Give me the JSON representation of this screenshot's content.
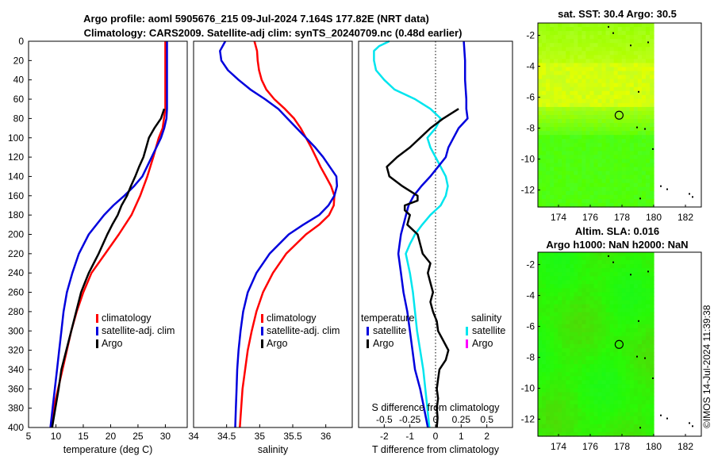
{
  "figure": {
    "title_line1": "Argo profile: aoml 5905676_215 09-Jul-2024 7.164S 177.82E (NRT data)",
    "title_line2": "Climatology: CARS2009. Satellite-adj clim: synTS_20240709.nc (0.48d earlier)",
    "stamp": "©IMOS 14-Jul-2024 11:39:38"
  },
  "colors": {
    "climatology": "#ff0000",
    "satellite": "#0000dd",
    "argo": "#000000",
    "salinity_satellite": "#00e5ee",
    "salinity_argo": "#ff00ff"
  },
  "chart_data": [
    {
      "id": "temperature",
      "type": "line",
      "xlabel": "temperature (deg C)",
      "xlim": [
        5,
        34
      ],
      "ylim": [
        400,
        0
      ],
      "xticks": [
        "5",
        "10",
        "15",
        "20",
        "25",
        "30"
      ],
      "yticks": [
        "0",
        "20",
        "40",
        "60",
        "80",
        "100",
        "120",
        "140",
        "160",
        "180",
        "200",
        "220",
        "240",
        "260",
        "280",
        "300",
        "320",
        "340",
        "360",
        "380",
        "400"
      ],
      "legend": [
        "climatology",
        "satellite-adj. clim",
        "Argo"
      ],
      "series": [
        {
          "name": "climatology",
          "depth": [
            0,
            60,
            70,
            90,
            100,
            120,
            140,
            160,
            180,
            200,
            220,
            240,
            260,
            280,
            300,
            320,
            340,
            360,
            380,
            400
          ],
          "values": [
            30.0,
            30.0,
            30.0,
            29.5,
            28.8,
            27.8,
            26.7,
            25.4,
            23.8,
            21.5,
            19.0,
            16.5,
            15.0,
            13.8,
            12.8,
            12.0,
            11.2,
            10.4,
            9.6,
            9.0
          ]
        },
        {
          "name": "satellite-adj. clim",
          "depth": [
            0,
            70,
            80,
            90,
            100,
            120,
            140,
            150,
            160,
            170,
            180,
            200,
            220,
            240,
            260,
            280,
            300,
            320,
            340,
            360,
            380,
            400
          ],
          "values": [
            30.3,
            30.3,
            30.2,
            29.8,
            29.2,
            27.5,
            25.8,
            24.3,
            22.5,
            20.5,
            18.8,
            16.0,
            14.2,
            13.0,
            12.0,
            11.4,
            11.0,
            10.6,
            10.2,
            9.8,
            9.4,
            9.0
          ]
        },
        {
          "name": "Argo",
          "depth": [
            70,
            80,
            90,
            100,
            110,
            120,
            130,
            140,
            150,
            160,
            170,
            180,
            190,
            200,
            210,
            220,
            230,
            240,
            250,
            260,
            280,
            300,
            320,
            340,
            360,
            380,
            400
          ],
          "values": [
            29.8,
            29.2,
            28.0,
            27.0,
            26.5,
            26.0,
            25.2,
            24.5,
            23.7,
            23.0,
            22.0,
            21.3,
            20.3,
            19.4,
            18.6,
            17.8,
            16.9,
            16.0,
            15.3,
            14.6,
            13.7,
            12.8,
            11.9,
            11.0,
            10.5,
            9.9,
            9.3
          ]
        }
      ]
    },
    {
      "id": "salinity",
      "type": "line",
      "xlabel": "salinity",
      "xlim": [
        34,
        36.4
      ],
      "ylim": [
        400,
        0
      ],
      "xticks": [
        "34",
        "34.5",
        "35",
        "35.5",
        "36"
      ],
      "legend": [
        "climatology",
        "satellite-adj. clim",
        "Argo"
      ],
      "series": [
        {
          "name": "climatology",
          "depth": [
            0,
            10,
            20,
            30,
            40,
            50,
            60,
            70,
            80,
            90,
            100,
            110,
            120,
            130,
            140,
            150,
            160,
            170,
            180,
            190,
            200,
            220,
            240,
            260,
            280,
            300,
            320,
            340,
            360,
            380,
            400
          ],
          "values": [
            34.92,
            34.96,
            34.97,
            34.99,
            35.03,
            35.1,
            35.22,
            35.38,
            35.52,
            35.62,
            35.7,
            35.78,
            35.85,
            35.92,
            36.0,
            36.08,
            36.13,
            36.12,
            36.05,
            35.9,
            35.7,
            35.4,
            35.2,
            35.05,
            34.95,
            34.88,
            34.82,
            34.78,
            34.74,
            34.72,
            34.7
          ]
        },
        {
          "name": "satellite-adj. clim",
          "depth": [
            0,
            10,
            20,
            30,
            40,
            50,
            60,
            70,
            80,
            90,
            100,
            110,
            120,
            130,
            140,
            150,
            160,
            170,
            180,
            190,
            200,
            220,
            240,
            260,
            280,
            300,
            320,
            340,
            360,
            380,
            400
          ],
          "values": [
            34.48,
            34.4,
            34.42,
            34.52,
            34.68,
            34.86,
            35.08,
            35.28,
            35.42,
            35.56,
            35.7,
            35.84,
            35.96,
            36.06,
            36.16,
            36.17,
            36.13,
            36.04,
            35.9,
            35.66,
            35.44,
            35.15,
            34.95,
            34.82,
            34.75,
            34.71,
            34.68,
            34.66,
            34.65,
            34.64,
            34.63
          ]
        }
      ]
    },
    {
      "id": "difference",
      "type": "line",
      "xlabel": "T difference from climatology",
      "top_label": "S difference from climatology",
      "xlim": [
        -3,
        3
      ],
      "ylim": [
        400,
        0
      ],
      "xticks": [
        "-2",
        "-1",
        "0",
        "1",
        "2"
      ],
      "top_ticks": [
        "-0.5",
        "-0.25",
        "0",
        "0.25",
        "0.5"
      ],
      "legend_temperature": {
        "title": "temperature",
        "items": [
          "satellite",
          "Argo"
        ]
      },
      "legend_salinity": {
        "title": "salinity",
        "items": [
          "satellite",
          "Argo"
        ]
      },
      "series": [
        {
          "name": "T satellite",
          "depth": [
            0,
            20,
            40,
            60,
            70,
            80,
            90,
            100,
            110,
            120,
            130,
            140,
            150,
            160,
            170,
            180,
            190,
            200,
            210,
            220,
            240,
            260,
            280,
            300,
            320,
            340,
            360,
            380,
            400
          ],
          "values": [
            1.1,
            1.15,
            1.15,
            1.2,
            1.2,
            1.25,
            0.9,
            0.7,
            0.5,
            0.4,
            0.1,
            -0.2,
            -0.55,
            -0.85,
            -1.05,
            -1.15,
            -1.25,
            -1.35,
            -1.4,
            -1.45,
            -1.35,
            -1.25,
            -1.1,
            -1.0,
            -0.9,
            -0.8,
            -0.6,
            -0.45,
            -0.3
          ]
        },
        {
          "name": "T Argo",
          "depth": [
            70,
            80,
            90,
            100,
            110,
            120,
            130,
            140,
            150,
            160,
            165,
            170,
            175,
            180,
            190,
            200,
            210,
            220,
            230,
            240,
            250,
            260,
            270,
            280,
            290,
            300,
            310,
            320,
            330,
            340,
            350,
            360,
            370,
            380,
            390,
            400
          ],
          "values": [
            0.9,
            0.3,
            -0.2,
            -0.6,
            -1.0,
            -1.5,
            -1.9,
            -1.8,
            -1.3,
            -0.7,
            -0.7,
            -1.2,
            -1.2,
            -1.0,
            -1.1,
            -0.7,
            -0.6,
            -0.5,
            -0.2,
            -0.3,
            -0.2,
            -0.1,
            -0.2,
            -0.1,
            0.05,
            0.1,
            0.3,
            0.5,
            0.4,
            0.15,
            0.1,
            0.05,
            0.1,
            0.05,
            0.08,
            0.05
          ]
        },
        {
          "name": "S satellite",
          "depth": [
            0,
            5,
            10,
            20,
            30,
            40,
            50,
            60,
            70,
            80,
            90,
            100,
            110,
            120,
            130,
            140,
            150,
            160,
            170,
            180,
            190,
            200,
            210,
            220,
            240,
            260,
            280,
            300,
            320,
            340,
            360,
            380,
            400
          ],
          "values": [
            -0.45,
            -0.55,
            -0.6,
            -0.6,
            -0.58,
            -0.5,
            -0.4,
            -0.2,
            -0.05,
            0.05,
            0.0,
            -0.08,
            -0.05,
            0.0,
            0.05,
            0.1,
            0.12,
            0.1,
            0.05,
            -0.05,
            -0.13,
            -0.2,
            -0.25,
            -0.29,
            -0.25,
            -0.22,
            -0.2,
            -0.18,
            -0.15,
            -0.12,
            -0.1,
            -0.08,
            -0.06
          ]
        }
      ]
    },
    {
      "id": "sst_map",
      "type": "heatmap",
      "title": "sat. SST: 30.4 Argo: 30.5",
      "xticks": [
        "174",
        "176",
        "178",
        "180",
        "182"
      ],
      "yticks": [
        "-2",
        "-4",
        "-6",
        "-8",
        "-10",
        "-12"
      ],
      "xlim": [
        172.7,
        183
      ],
      "ylim": [
        -13.1,
        -1.2
      ],
      "data_xmax": 180,
      "argo_position": [
        177.82,
        -7.164
      ]
    },
    {
      "id": "sla_map",
      "type": "heatmap",
      "title_line1": "Altim. SLA: 0.016",
      "title_line2": "Argo h1000: NaN h2000: NaN",
      "xticks": [
        "174",
        "176",
        "178",
        "180",
        "182"
      ],
      "yticks": [
        "-2",
        "-4",
        "-6",
        "-8",
        "-10",
        "-12"
      ],
      "xlim": [
        172.7,
        183
      ],
      "ylim": [
        -13.1,
        -1.2
      ],
      "data_xmax": 180,
      "argo_position": [
        177.82,
        -7.164
      ]
    }
  ]
}
